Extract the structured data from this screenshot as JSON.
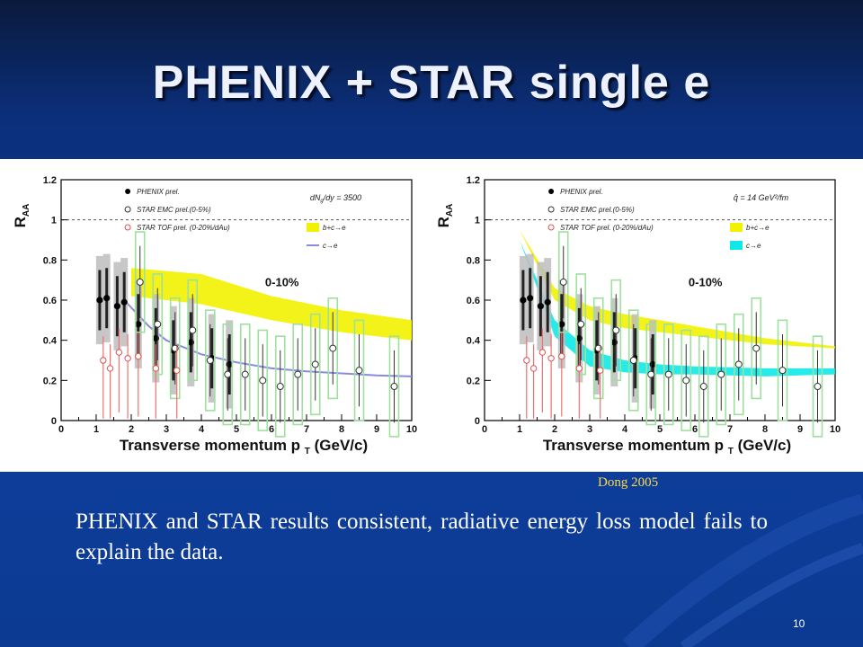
{
  "slide": {
    "title": "PHENIX + STAR single e",
    "credit": "Dong 2005",
    "body": "PHENIX and STAR results consistent, radiative energy loss model fails to explain the data.",
    "page_number": "10"
  },
  "chart_data": [
    {
      "type": "scatter",
      "xlabel": "Transverse momentum p",
      "xlabel_sub": "T",
      "xlabel_unit": "(GeV/c)",
      "ylabel": "R",
      "ylabel_sub": "AA",
      "xlim": [
        0,
        10
      ],
      "ylim": [
        0,
        1.2
      ],
      "x_ticks": [
        "0",
        "1",
        "2",
        "3",
        "4",
        "5",
        "6",
        "7",
        "8",
        "9",
        "10"
      ],
      "y_ticks": [
        "0",
        "0.2",
        "0.4",
        "0.6",
        "0.8",
        "1",
        "1.2"
      ],
      "reference_line": 1,
      "centrality": "0-10%",
      "model_label": "dN /dy = 3500",
      "model_label_sub": "g",
      "legend": [
        "PHENIX prel.",
        "STAR EMC prel.(0-5%)",
        "STAR TOF prel. (0-20%/dAu)"
      ],
      "model_legend": [
        "b+c→e",
        "c→e"
      ],
      "bands": [
        {
          "name": "b+c→e",
          "color": "#f2f200",
          "x": [
            2.0,
            4.0,
            6.0,
            8.0,
            10.0
          ],
          "upper": [
            0.76,
            0.73,
            0.62,
            0.55,
            0.5
          ],
          "lower": [
            0.62,
            0.58,
            0.5,
            0.44,
            0.4
          ]
        }
      ],
      "lines": [
        {
          "name": "c→e",
          "color": "#8a8ae0",
          "x": [
            1.8,
            2.5,
            3.0,
            4.0,
            5.0,
            6.0,
            7.0,
            8.0,
            9.0,
            10.0
          ],
          "y": [
            0.6,
            0.47,
            0.4,
            0.33,
            0.29,
            0.26,
            0.245,
            0.235,
            0.225,
            0.22
          ]
        }
      ],
      "series": [
        {
          "name": "PHENIX prel.",
          "marker": "filled",
          "x": [
            1.1,
            1.3,
            1.6,
            1.8,
            2.2,
            2.7,
            3.2,
            3.7,
            4.3,
            4.8
          ],
          "y": [
            0.6,
            0.61,
            0.57,
            0.59,
            0.48,
            0.41,
            0.35,
            0.39,
            0.31,
            0.28
          ]
        },
        {
          "name": "STAR EMC prel.(0-5%)",
          "marker": "open",
          "x": [
            2.25,
            2.75,
            3.25,
            3.75,
            4.25,
            4.75,
            5.25,
            5.75,
            6.25,
            6.75,
            7.25,
            7.75,
            8.5,
            9.5
          ],
          "y": [
            0.69,
            0.48,
            0.36,
            0.45,
            0.3,
            0.23,
            0.23,
            0.2,
            0.17,
            0.23,
            0.28,
            0.36,
            0.25,
            0.17
          ]
        },
        {
          "name": "STAR TOF prel. (0-20%/dAu)",
          "marker": "open-red",
          "x": [
            1.2,
            1.4,
            1.65,
            1.9,
            2.2,
            2.7,
            3.3
          ],
          "y": [
            0.3,
            0.26,
            0.34,
            0.31,
            0.32,
            0.26,
            0.25
          ]
        }
      ]
    },
    {
      "type": "scatter",
      "xlabel": "Transverse momentum p",
      "xlabel_sub": "T",
      "xlabel_unit": "(GeV/c)",
      "ylabel": "R",
      "ylabel_sub": "AA",
      "xlim": [
        0,
        10
      ],
      "ylim": [
        0,
        1.2
      ],
      "x_ticks": [
        "0",
        "1",
        "2",
        "3",
        "4",
        "5",
        "6",
        "7",
        "8",
        "9",
        "10"
      ],
      "y_ticks": [
        "0",
        "0.2",
        "0.4",
        "0.6",
        "0.8",
        "1",
        "1.2"
      ],
      "reference_line": 1,
      "centrality": "0-10%",
      "model_label": "q̂ = 14 GeV²/fm",
      "legend": [
        "PHENIX prel.",
        "STAR EMC prel.(0-5%)",
        "STAR TOF prel. (0-20%/dAu)"
      ],
      "model_legend": [
        "b+c→e",
        "c→e"
      ],
      "bands": [
        {
          "name": "b+c→e",
          "color": "#f2f200",
          "x": [
            1.0,
            2.0,
            3.0,
            4.0,
            6.0,
            8.0,
            10.0
          ],
          "upper": [
            0.95,
            0.66,
            0.57,
            0.53,
            0.47,
            0.41,
            0.37
          ],
          "lower": [
            0.95,
            0.6,
            0.5,
            0.46,
            0.42,
            0.38,
            0.36
          ]
        },
        {
          "name": "c→e",
          "color": "#10e8e8",
          "x": [
            1.0,
            2.0,
            3.0,
            4.0,
            5.0,
            6.0,
            8.0,
            10.0
          ],
          "upper": [
            0.9,
            0.5,
            0.35,
            0.3,
            0.28,
            0.27,
            0.26,
            0.26
          ],
          "lower": [
            0.9,
            0.42,
            0.27,
            0.24,
            0.23,
            0.23,
            0.22,
            0.23
          ]
        }
      ],
      "lines": [],
      "series": [
        {
          "name": "PHENIX prel.",
          "marker": "filled",
          "x": [
            1.1,
            1.3,
            1.6,
            1.8,
            2.2,
            2.7,
            3.2,
            3.7,
            4.3,
            4.8
          ],
          "y": [
            0.6,
            0.61,
            0.57,
            0.59,
            0.48,
            0.41,
            0.35,
            0.39,
            0.31,
            0.28
          ]
        },
        {
          "name": "STAR EMC prel.(0-5%)",
          "marker": "open",
          "x": [
            2.25,
            2.75,
            3.25,
            3.75,
            4.25,
            4.75,
            5.25,
            5.75,
            6.25,
            6.75,
            7.25,
            7.75,
            8.5,
            9.5
          ],
          "y": [
            0.69,
            0.48,
            0.36,
            0.45,
            0.3,
            0.23,
            0.23,
            0.2,
            0.17,
            0.23,
            0.28,
            0.36,
            0.25,
            0.17
          ]
        },
        {
          "name": "STAR TOF prel. (0-20%/dAu)",
          "marker": "open-red",
          "x": [
            1.2,
            1.4,
            1.65,
            1.9,
            2.2,
            2.7,
            3.3
          ],
          "y": [
            0.3,
            0.26,
            0.34,
            0.31,
            0.32,
            0.26,
            0.25
          ]
        }
      ]
    }
  ]
}
